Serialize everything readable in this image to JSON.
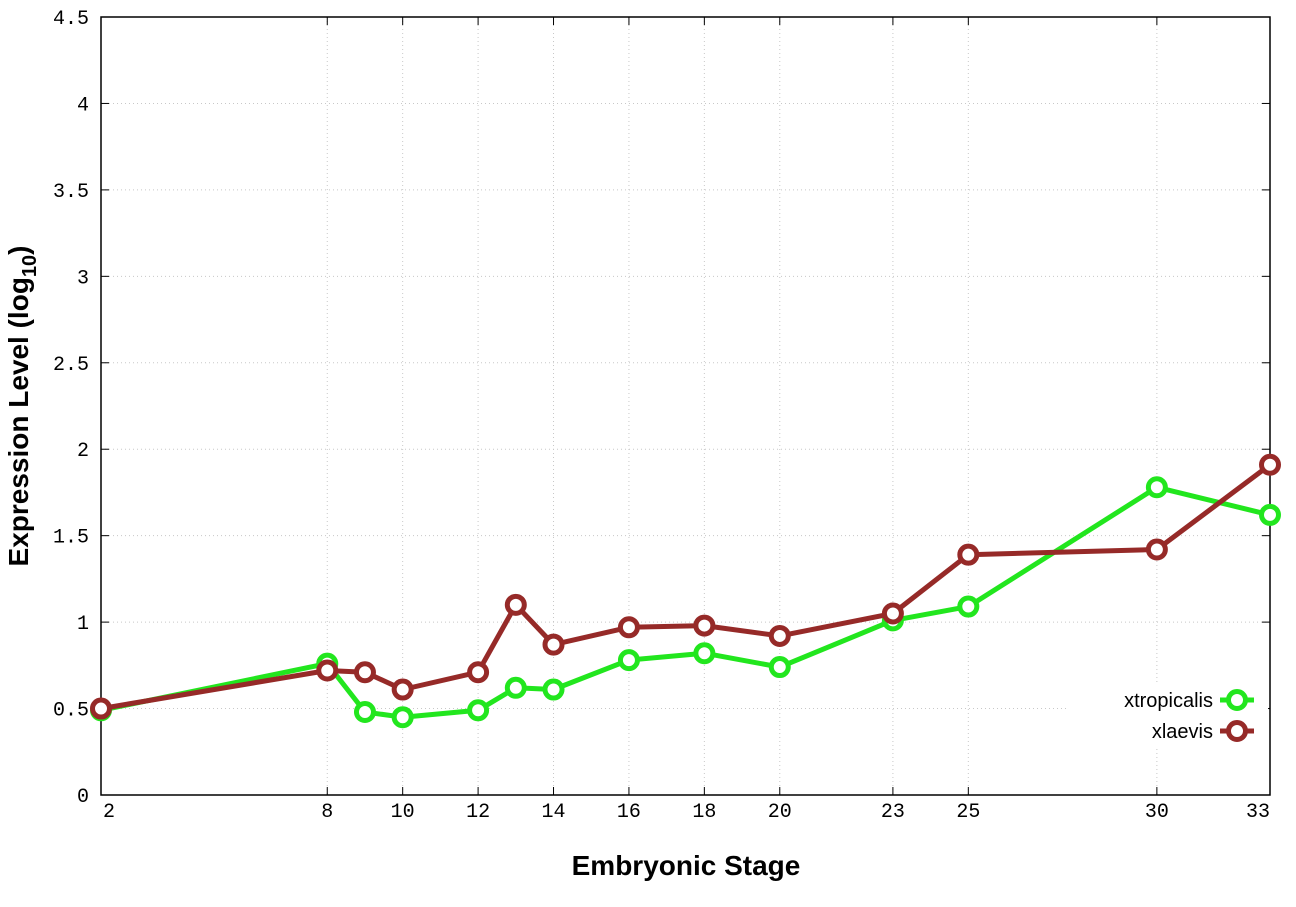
{
  "chart_data": {
    "type": "line",
    "xlabel": "Embryonic Stage",
    "ylabel": "Expression Level (log",
    "ylabel_sub": "10",
    "ylabel_end": ")",
    "x_ticks": [
      "2",
      "8",
      "10",
      "12",
      "14",
      "16",
      "18",
      "20",
      "23",
      "25",
      "30",
      "33"
    ],
    "y_ticks": [
      "0",
      "0.5",
      "1",
      "1.5",
      "2",
      "2.5",
      "3",
      "3.5",
      "4",
      "4.5"
    ],
    "ylim": [
      0,
      4.5
    ],
    "grid": true,
    "legend_position": "bottom-right",
    "x": [
      2,
      8,
      9,
      10,
      12,
      13,
      14,
      16,
      18,
      20,
      23,
      25,
      30,
      33
    ],
    "series": [
      {
        "name": "xtropicalis",
        "color": "#22e61e",
        "values": [
          0.49,
          0.76,
          0.48,
          0.45,
          0.49,
          0.62,
          0.61,
          0.78,
          0.82,
          0.74,
          1.01,
          1.09,
          1.78,
          1.62
        ]
      },
      {
        "name": "xlaevis",
        "color": "#962a28",
        "values": [
          0.5,
          0.72,
          0.71,
          0.61,
          0.71,
          1.1,
          0.87,
          0.97,
          0.98,
          0.92,
          1.05,
          1.39,
          1.42,
          1.91
        ]
      }
    ]
  }
}
